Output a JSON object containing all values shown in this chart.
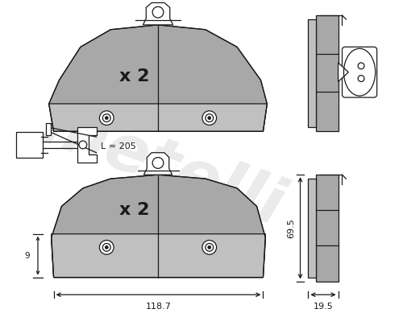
{
  "bg_color": "#ffffff",
  "line_color": "#1a1a1a",
  "pad_fill_light": "#c0c0c0",
  "pad_fill_dark": "#a8a8a8",
  "watermark_color": "#d8d8d8",
  "watermark_text": "metelli",
  "dim_118_7": "118.7",
  "dim_19_5": "19.5",
  "dim_69_5": "69.5",
  "dim_9": "9",
  "dim_L205": "L = 205",
  "label_x2": "x 2"
}
